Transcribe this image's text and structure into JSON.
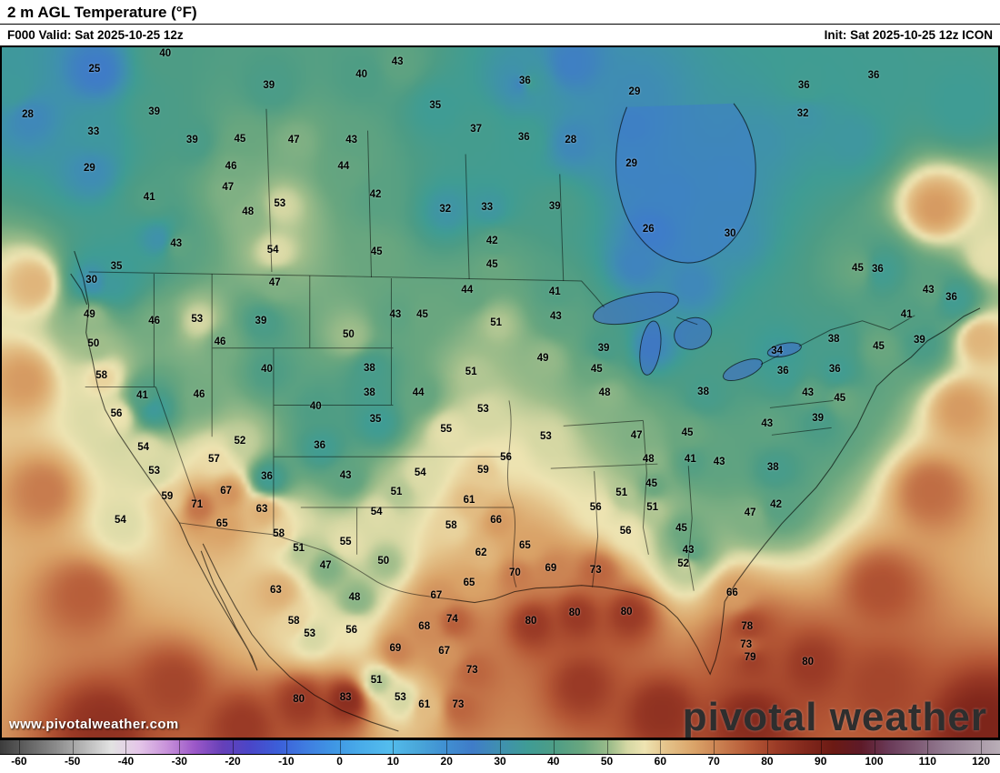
{
  "header": {
    "title": "2 m AGL Temperature (°F)",
    "frame_valid": "F000 Valid: Sat 2025-10-25 12z",
    "init": "Init: Sat 2025-10-25 12z ICON"
  },
  "watermarks": {
    "site": "www.pivotalweather.com",
    "brand": "pivotal weather"
  },
  "colorbar": {
    "min": -60,
    "max": 120,
    "tick_step": 10,
    "ticks": [
      "-60",
      "-50",
      "-40",
      "-30",
      "-20",
      "-10",
      "0",
      "10",
      "20",
      "30",
      "40",
      "50",
      "60",
      "70",
      "80",
      "90",
      "100",
      "110",
      "120"
    ],
    "stops": [
      {
        "t": -60,
        "c": "#3c3c3c"
      },
      {
        "t": -50,
        "c": "#8a8a8a"
      },
      {
        "t": -40,
        "c": "#e2e2e2"
      },
      {
        "t": -35,
        "c": "#e4c6e8"
      },
      {
        "t": -30,
        "c": "#c892da"
      },
      {
        "t": -25,
        "c": "#9c58c8"
      },
      {
        "t": -20,
        "c": "#6640b8"
      },
      {
        "t": -15,
        "c": "#4a46c8"
      },
      {
        "t": -10,
        "c": "#3c5ed8"
      },
      {
        "t": -5,
        "c": "#3f7ce0"
      },
      {
        "t": 0,
        "c": "#3f96e4"
      },
      {
        "t": 5,
        "c": "#49ace9"
      },
      {
        "t": 10,
        "c": "#53bced"
      },
      {
        "t": 15,
        "c": "#4aa8da"
      },
      {
        "t": 20,
        "c": "#4090d2"
      },
      {
        "t": 25,
        "c": "#3f7cc8"
      },
      {
        "t": 30,
        "c": "#3f90b0"
      },
      {
        "t": 35,
        "c": "#3f9c95"
      },
      {
        "t": 40,
        "c": "#4e9d85"
      },
      {
        "t": 45,
        "c": "#6aa77f"
      },
      {
        "t": 50,
        "c": "#a0be8b"
      },
      {
        "t": 53,
        "c": "#d6d8a4"
      },
      {
        "t": 56,
        "c": "#eee4b2"
      },
      {
        "t": 60,
        "c": "#e4c289"
      },
      {
        "t": 65,
        "c": "#daa368"
      },
      {
        "t": 70,
        "c": "#c87c4e"
      },
      {
        "t": 75,
        "c": "#b55836"
      },
      {
        "t": 80,
        "c": "#9a3a26"
      },
      {
        "t": 85,
        "c": "#82281c"
      },
      {
        "t": 90,
        "c": "#6c1a14"
      },
      {
        "t": 95,
        "c": "#5e1a28"
      },
      {
        "t": 100,
        "c": "#6a3a58"
      },
      {
        "t": 110,
        "c": "#927a90"
      },
      {
        "t": 120,
        "c": "#b9aeb7"
      }
    ]
  },
  "map": {
    "labels": [
      [
        25,
        9.3,
        3.1
      ],
      [
        40,
        16.4,
        0.9
      ],
      [
        39,
        26.8,
        5.5
      ],
      [
        40,
        36.1,
        3.9
      ],
      [
        43,
        39.7,
        2.1
      ],
      [
        36,
        52.5,
        4.9
      ],
      [
        29,
        63.5,
        6.4
      ],
      [
        36,
        80.5,
        5.5
      ],
      [
        36,
        87.5,
        4.1
      ],
      [
        28,
        2.6,
        9.8
      ],
      [
        33,
        9.2,
        12.3
      ],
      [
        39,
        15.3,
        9.4
      ],
      [
        39,
        19.1,
        13.4
      ],
      [
        45,
        23.9,
        13.3
      ],
      [
        47,
        29.3,
        13.5
      ],
      [
        43,
        35.1,
        13.5
      ],
      [
        35,
        43.5,
        8.4
      ],
      [
        37,
        47.6,
        11.9
      ],
      [
        36,
        52.4,
        13.1
      ],
      [
        28,
        57.1,
        13.5
      ],
      [
        29,
        63.2,
        16.8
      ],
      [
        32,
        80.4,
        9.6
      ],
      [
        29,
        8.8,
        17.5
      ],
      [
        41,
        14.8,
        21.7
      ],
      [
        46,
        23.0,
        17.2
      ],
      [
        47,
        22.7,
        20.3
      ],
      [
        44,
        34.3,
        17.2
      ],
      [
        53,
        27.9,
        22.7
      ],
      [
        42,
        37.5,
        21.3
      ],
      [
        48,
        24.7,
        23.9
      ],
      [
        32,
        44.5,
        23.4
      ],
      [
        33,
        48.7,
        23.2
      ],
      [
        39,
        55.5,
        23.0
      ],
      [
        30,
        73.1,
        27.0
      ],
      [
        26,
        64.9,
        26.4
      ],
      [
        43,
        17.5,
        28.5
      ],
      [
        54,
        27.2,
        29.4
      ],
      [
        45,
        37.6,
        29.7
      ],
      [
        42,
        49.2,
        28.0
      ],
      [
        45,
        49.2,
        31.5
      ],
      [
        35,
        11.5,
        31.8
      ],
      [
        30,
        9.0,
        33.7
      ],
      [
        47,
        27.4,
        34.1
      ],
      [
        44,
        46.7,
        35.2
      ],
      [
        41,
        55.5,
        35.4
      ],
      [
        49,
        8.8,
        38.7
      ],
      [
        46,
        15.3,
        39.6
      ],
      [
        53,
        19.6,
        39.4
      ],
      [
        39,
        26.0,
        39.6
      ],
      [
        43,
        39.5,
        38.7
      ],
      [
        45,
        42.2,
        38.7
      ],
      [
        51,
        49.6,
        39.9
      ],
      [
        43,
        55.6,
        39.0
      ],
      [
        50,
        9.2,
        43.0
      ],
      [
        46,
        21.9,
        42.7
      ],
      [
        50,
        34.8,
        41.6
      ],
      [
        38,
        36.9,
        46.5
      ],
      [
        49,
        54.3,
        45.0
      ],
      [
        45,
        59.7,
        46.6
      ],
      [
        39,
        60.4,
        43.6
      ],
      [
        48,
        60.5,
        50.0
      ],
      [
        58,
        10.0,
        47.6
      ],
      [
        41,
        14.1,
        50.5
      ],
      [
        46,
        19.8,
        50.3
      ],
      [
        40,
        26.6,
        46.7
      ],
      [
        40,
        31.5,
        52.0
      ],
      [
        38,
        36.9,
        50.1
      ],
      [
        44,
        41.8,
        50.1
      ],
      [
        51,
        47.1,
        47.0
      ],
      [
        53,
        48.3,
        52.5
      ],
      [
        56,
        11.5,
        53.1
      ],
      [
        35,
        37.5,
        53.9
      ],
      [
        52,
        23.9,
        57.0
      ],
      [
        54,
        14.2,
        58.0
      ],
      [
        36,
        31.9,
        57.7
      ],
      [
        55,
        44.6,
        55.4
      ],
      [
        53,
        54.6,
        56.4
      ],
      [
        47,
        63.7,
        56.2
      ],
      [
        45,
        68.8,
        55.8
      ],
      [
        53,
        15.3,
        61.4
      ],
      [
        57,
        21.3,
        59.7
      ],
      [
        36,
        26.6,
        62.2
      ],
      [
        43,
        34.5,
        62.1
      ],
      [
        54,
        42.0,
        61.7
      ],
      [
        51,
        39.6,
        64.4
      ],
      [
        56,
        50.6,
        59.4
      ],
      [
        59,
        48.3,
        61.3
      ],
      [
        51,
        62.2,
        64.6
      ],
      [
        48,
        64.9,
        59.7
      ],
      [
        45,
        65.2,
        63.3
      ],
      [
        67,
        22.5,
        64.3
      ],
      [
        59,
        16.6,
        65.1
      ],
      [
        71,
        19.6,
        66.3
      ],
      [
        63,
        26.1,
        66.9
      ],
      [
        65,
        22.1,
        69.0
      ],
      [
        54,
        37.6,
        67.3
      ],
      [
        61,
        46.9,
        65.6
      ],
      [
        66,
        49.6,
        68.5
      ],
      [
        56,
        59.6,
        66.7
      ],
      [
        51,
        65.3,
        66.7
      ],
      [
        45,
        68.2,
        69.7
      ],
      [
        43,
        68.9,
        72.8
      ],
      [
        52,
        68.4,
        74.8
      ],
      [
        54,
        11.9,
        68.5
      ],
      [
        58,
        27.8,
        70.5
      ],
      [
        51,
        29.8,
        72.6
      ],
      [
        55,
        34.5,
        71.7
      ],
      [
        58,
        45.1,
        69.3
      ],
      [
        62,
        48.1,
        73.2
      ],
      [
        65,
        52.5,
        72.2
      ],
      [
        69,
        55.1,
        75.5
      ],
      [
        70,
        51.5,
        76.2
      ],
      [
        47,
        32.5,
        75.1
      ],
      [
        50,
        38.3,
        74.4
      ],
      [
        65,
        46.9,
        77.6
      ],
      [
        73,
        59.6,
        75.7
      ],
      [
        63,
        27.5,
        78.6
      ],
      [
        48,
        35.4,
        79.7
      ],
      [
        67,
        43.6,
        79.4
      ],
      [
        80,
        53.1,
        83.2
      ],
      [
        80,
        57.5,
        82.0
      ],
      [
        80,
        62.7,
        81.8
      ],
      [
        58,
        29.3,
        83.1
      ],
      [
        53,
        30.9,
        85.0
      ],
      [
        56,
        35.1,
        84.5
      ],
      [
        74,
        45.2,
        82.9
      ],
      [
        68,
        42.4,
        83.9
      ],
      [
        69,
        39.5,
        87.1
      ],
      [
        67,
        44.4,
        87.5
      ],
      [
        73,
        47.2,
        90.2
      ],
      [
        51,
        37.6,
        91.7
      ],
      [
        53,
        40.0,
        94.2
      ],
      [
        83,
        34.5,
        94.2
      ],
      [
        80,
        29.8,
        94.5
      ],
      [
        61,
        42.4,
        95.3
      ],
      [
        73,
        45.8,
        95.3
      ],
      [
        45,
        85.9,
        32.0
      ],
      [
        36,
        87.9,
        32.2
      ],
      [
        43,
        93.0,
        35.2
      ],
      [
        41,
        90.8,
        38.8
      ],
      [
        36,
        95.3,
        36.2
      ],
      [
        39,
        92.1,
        42.4
      ],
      [
        45,
        88.0,
        43.3
      ],
      [
        34,
        77.8,
        44.0
      ],
      [
        38,
        83.5,
        42.3
      ],
      [
        36,
        78.4,
        46.9
      ],
      [
        38,
        70.4,
        49.9
      ],
      [
        43,
        80.9,
        50.1
      ],
      [
        36,
        83.6,
        46.6
      ],
      [
        45,
        84.1,
        50.9
      ],
      [
        39,
        81.9,
        53.7
      ],
      [
        43,
        76.8,
        54.5
      ],
      [
        38,
        77.4,
        60.9
      ],
      [
        43,
        72.0,
        60.1
      ],
      [
        41,
        69.1,
        59.7
      ],
      [
        47,
        75.1,
        67.5
      ],
      [
        42,
        77.7,
        66.3
      ],
      [
        56,
        62.6,
        70.1
      ],
      [
        66,
        73.3,
        79.1
      ],
      [
        78,
        74.8,
        83.9
      ],
      [
        73,
        74.7,
        86.5
      ],
      [
        79,
        75.1,
        88.4
      ],
      [
        80,
        80.9,
        89.0
      ]
    ],
    "field_samples": [
      [
        62,
        3,
        34
      ],
      [
        66,
        2,
        48
      ],
      [
        70,
        4,
        64
      ],
      [
        74,
        8,
        79
      ],
      [
        78,
        17,
        92
      ],
      [
        82,
        10,
        98
      ],
      [
        80,
        24,
        98
      ],
      [
        80,
        58,
        92
      ],
      [
        82,
        66,
        96
      ],
      [
        84,
        75,
        97
      ],
      [
        78,
        88,
        92
      ],
      [
        76,
        88,
        78
      ],
      [
        72,
        93,
        64
      ],
      [
        66,
        96,
        52
      ],
      [
        62,
        98,
        42
      ],
      [
        55,
        99,
        30
      ],
      [
        66,
        93.5,
        23
      ],
      [
        86,
        98,
        98
      ],
      [
        28,
        63,
        11
      ],
      [
        29,
        67,
        21
      ],
      [
        30,
        73,
        19
      ],
      [
        26,
        57,
        2
      ],
      [
        27,
        52,
        5
      ],
      [
        33,
        85,
        13
      ],
      [
        35,
        96,
        8
      ],
      [
        34,
        1,
        6
      ],
      [
        31,
        76,
        13
      ],
      [
        34,
        11,
        34
      ],
      [
        34,
        15,
        52
      ],
      [
        31,
        15.5,
        27.5
      ],
      [
        27,
        63.5,
        31
      ],
      [
        28,
        65,
        43
      ],
      [
        28,
        69,
        34
      ]
    ]
  }
}
